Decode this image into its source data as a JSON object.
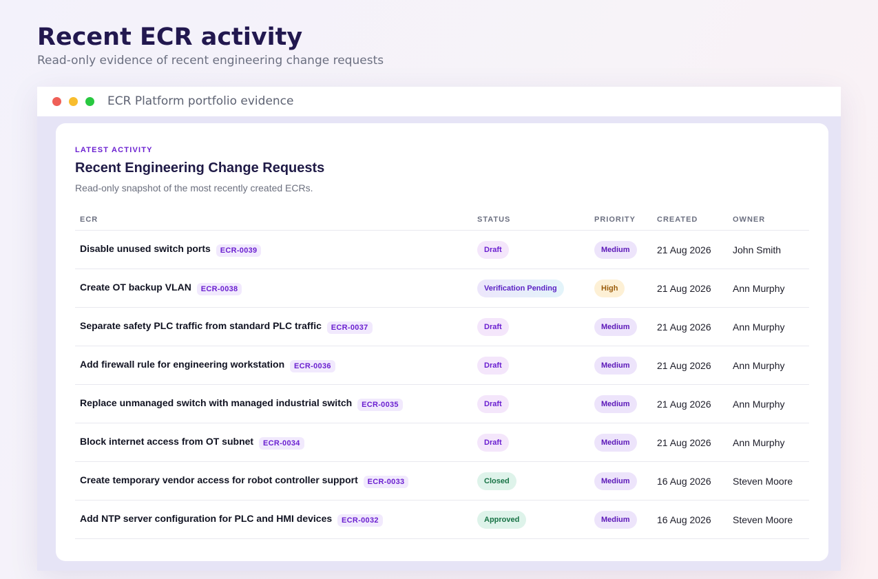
{
  "page": {
    "title": "Recent ECR activity",
    "subtitle": "Read-only evidence of recent engineering change requests"
  },
  "window": {
    "title": "ECR Platform portfolio evidence"
  },
  "card": {
    "eyebrow": "LATEST ACTIVITY",
    "title": "Recent Engineering Change Requests",
    "description": "Read-only snapshot of the most recently created ECRs."
  },
  "table": {
    "columns": [
      "ECR",
      "STATUS",
      "PRIORITY",
      "CREATED",
      "OWNER"
    ],
    "rows": [
      {
        "title": "Disable unused switch ports",
        "id": "ECR-0039",
        "status": "Draft",
        "priority": "Medium",
        "created": "21 Aug 2026",
        "owner": "John Smith"
      },
      {
        "title": "Create OT backup VLAN",
        "id": "ECR-0038",
        "status": "Verification Pending",
        "priority": "High",
        "created": "21 Aug 2026",
        "owner": "Ann Murphy"
      },
      {
        "title": "Separate safety PLC traffic from standard PLC traffic",
        "id": "ECR-0037",
        "status": "Draft",
        "priority": "Medium",
        "created": "21 Aug 2026",
        "owner": "Ann Murphy"
      },
      {
        "title": "Add firewall rule for engineering workstation",
        "id": "ECR-0036",
        "status": "Draft",
        "priority": "Medium",
        "created": "21 Aug 2026",
        "owner": "Ann Murphy"
      },
      {
        "title": "Replace unmanaged switch with managed industrial switch",
        "id": "ECR-0035",
        "status": "Draft",
        "priority": "Medium",
        "created": "21 Aug 2026",
        "owner": "Ann Murphy"
      },
      {
        "title": "Block internet access from OT subnet",
        "id": "ECR-0034",
        "status": "Draft",
        "priority": "Medium",
        "created": "21 Aug 2026",
        "owner": "Ann Murphy"
      },
      {
        "title": "Create temporary vendor access for robot controller support",
        "id": "ECR-0033",
        "status": "Closed",
        "priority": "Medium",
        "created": "16 Aug 2026",
        "owner": "Steven Moore"
      },
      {
        "title": "Add NTP server configuration for PLC and HMI devices",
        "id": "ECR-0032",
        "status": "Approved",
        "priority": "Medium",
        "created": "16 Aug 2026",
        "owner": "Steven Moore"
      }
    ]
  },
  "colors": {
    "accent": "#6a1fd0",
    "heading": "#22184f",
    "draft_bg": "#f4e6fb",
    "approved_bg": "#def3ea",
    "high_bg": "#fdf0d5"
  }
}
